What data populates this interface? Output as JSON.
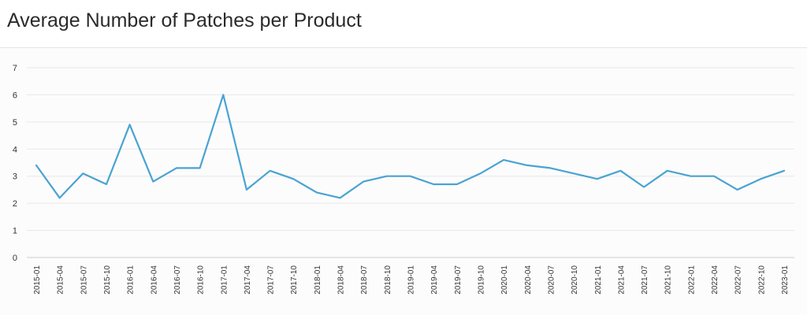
{
  "header": {
    "title": "Average Number of Patches per Product"
  },
  "colors": {
    "line": "#4aa3d2",
    "grid": "#e8e8e8",
    "axis": "#cccccc"
  },
  "chart_data": {
    "type": "line",
    "title": "Average Number of Patches per Product",
    "xlabel": "",
    "ylabel": "",
    "ylim": [
      0,
      7
    ],
    "yticks": [
      0,
      1,
      2,
      3,
      4,
      5,
      6,
      7
    ],
    "grid": true,
    "categories": [
      "2015-01",
      "2015-04",
      "2015-07",
      "2015-10",
      "2016-01",
      "2016-04",
      "2016-07",
      "2016-10",
      "2017-01",
      "2017-04",
      "2017-07",
      "2017-10",
      "2018-01",
      "2018-04",
      "2018-07",
      "2018-10",
      "2019-01",
      "2019-04",
      "2019-07",
      "2019-10",
      "2020-01",
      "2020-04",
      "2020-07",
      "2020-10",
      "2021-01",
      "2021-04",
      "2021-07",
      "2021-10",
      "2022-01",
      "2022-04",
      "2022-07",
      "2022-10",
      "2023-01"
    ],
    "series": [
      {
        "values": [
          3.4,
          2.2,
          3.1,
          2.7,
          4.9,
          2.8,
          3.3,
          3.3,
          6.0,
          2.5,
          3.2,
          2.9,
          2.4,
          2.2,
          2.8,
          3.0,
          3.0,
          2.7,
          2.7,
          3.1,
          3.6,
          3.4,
          3.3,
          3.1,
          2.9,
          3.2,
          2.6,
          3.2,
          3.0,
          3.0,
          2.5,
          2.9,
          3.2
        ]
      }
    ]
  }
}
